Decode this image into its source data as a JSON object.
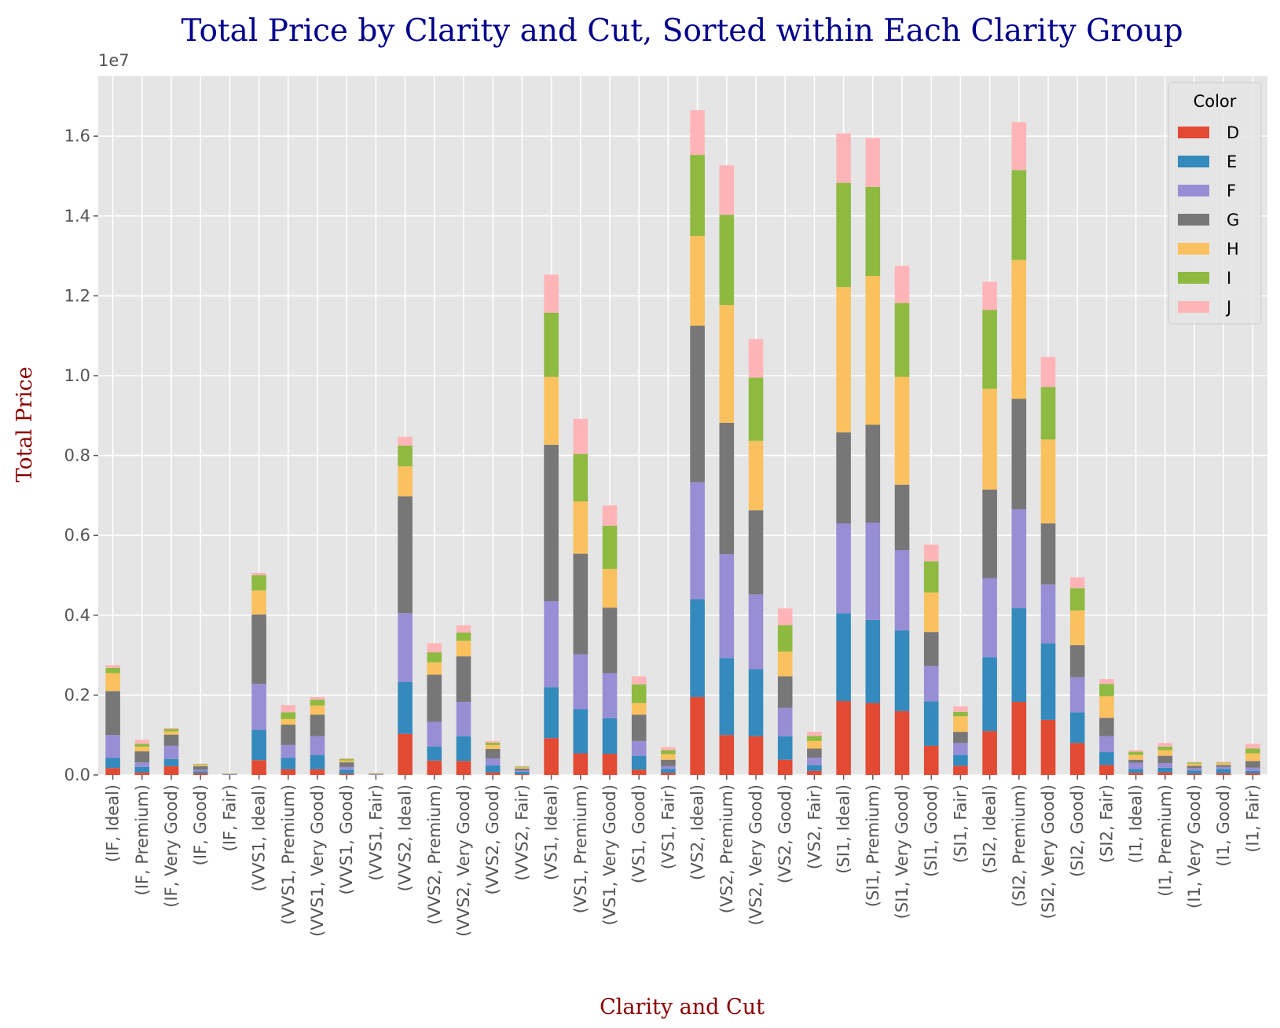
{
  "chart_data": {
    "type": "stacked_bar",
    "title": "Total Price by Clarity and Cut, Sorted within Each Clarity Group",
    "x_label": "Clarity and Cut",
    "y_label": "Total Price",
    "y_offset_label": "1e7",
    "legend_title": "Color",
    "legend_position": "upper right",
    "grid": true,
    "categories": [
      "(IF, Ideal)",
      "(IF, Premium)",
      "(IF, Very Good)",
      "(IF, Good)",
      "(IF, Fair)",
      "(VVS1, Ideal)",
      "(VVS1, Premium)",
      "(VVS1, Very Good)",
      "(VVS1, Good)",
      "(VVS1, Fair)",
      "(VVS2, Ideal)",
      "(VVS2, Premium)",
      "(VVS2, Very Good)",
      "(VVS2, Good)",
      "(VVS2, Fair)",
      "(VS1, Ideal)",
      "(VS1, Premium)",
      "(VS1, Very Good)",
      "(VS1, Good)",
      "(VS1, Fair)",
      "(VS2, Ideal)",
      "(VS2, Premium)",
      "(VS2, Very Good)",
      "(VS2, Good)",
      "(VS2, Fair)",
      "(SI1, Ideal)",
      "(SI1, Premium)",
      "(SI1, Very Good)",
      "(SI1, Good)",
      "(SI1, Fair)",
      "(SI2, Ideal)",
      "(SI2, Premium)",
      "(SI2, Very Good)",
      "(SI2, Good)",
      "(SI2, Fair)",
      "(I1, Ideal)",
      "(I1, Premium)",
      "(I1, Very Good)",
      "(I1, Good)",
      "(I1, Fair)"
    ],
    "series": [
      {
        "name": "D",
        "color": "#E24A33",
        "values": [
          0.017,
          0.006,
          0.022,
          0.004,
          0.0005,
          0.037,
          0.014,
          0.014,
          0.003,
          0.0006,
          0.103,
          0.036,
          0.035,
          0.006,
          0.002,
          0.092,
          0.054,
          0.053,
          0.013,
          0.005,
          0.195,
          0.1,
          0.097,
          0.038,
          0.01,
          0.185,
          0.18,
          0.16,
          0.073,
          0.023,
          0.11,
          0.183,
          0.138,
          0.08,
          0.025,
          0.005,
          0.006,
          0.003,
          0.004,
          0.004
        ]
      },
      {
        "name": "E",
        "color": "#348ABD",
        "values": [
          0.026,
          0.014,
          0.018,
          0.005,
          0.0005,
          0.076,
          0.029,
          0.036,
          0.01,
          0.0007,
          0.13,
          0.035,
          0.062,
          0.018,
          0.006,
          0.128,
          0.111,
          0.089,
          0.035,
          0.01,
          0.245,
          0.193,
          0.168,
          0.059,
          0.015,
          0.22,
          0.208,
          0.202,
          0.111,
          0.027,
          0.185,
          0.235,
          0.192,
          0.077,
          0.032,
          0.01,
          0.012,
          0.008,
          0.011,
          0.006
        ]
      },
      {
        "name": "F",
        "color": "#988ED5",
        "values": [
          0.057,
          0.011,
          0.033,
          0.004,
          0.0008,
          0.115,
          0.032,
          0.047,
          0.007,
          0.0005,
          0.172,
          0.062,
          0.086,
          0.017,
          0.003,
          0.215,
          0.137,
          0.113,
          0.037,
          0.007,
          0.293,
          0.26,
          0.187,
          0.071,
          0.018,
          0.225,
          0.244,
          0.201,
          0.089,
          0.03,
          0.198,
          0.247,
          0.147,
          0.088,
          0.04,
          0.015,
          0.011,
          0.006,
          0.005,
          0.008
        ]
      },
      {
        "name": "G",
        "color": "#777777",
        "values": [
          0.11,
          0.028,
          0.028,
          0.009,
          0.0008,
          0.174,
          0.051,
          0.054,
          0.012,
          0.0009,
          0.293,
          0.118,
          0.114,
          0.024,
          0.005,
          0.392,
          0.252,
          0.164,
          0.066,
          0.016,
          0.392,
          0.329,
          0.211,
          0.079,
          0.023,
          0.228,
          0.245,
          0.164,
          0.085,
          0.028,
          0.222,
          0.277,
          0.153,
          0.08,
          0.046,
          0.008,
          0.019,
          0.006,
          0.005,
          0.017
        ]
      },
      {
        "name": "H",
        "color": "#FBC15E",
        "values": [
          0.045,
          0.012,
          0.008,
          0.003,
          0.0006,
          0.06,
          0.014,
          0.023,
          0.004,
          0.0008,
          0.075,
          0.031,
          0.039,
          0.01,
          0.003,
          0.17,
          0.131,
          0.097,
          0.029,
          0.014,
          0.225,
          0.295,
          0.174,
          0.062,
          0.019,
          0.364,
          0.373,
          0.27,
          0.099,
          0.039,
          0.252,
          0.348,
          0.21,
          0.087,
          0.054,
          0.012,
          0.014,
          0.005,
          0.004,
          0.019
        ]
      },
      {
        "name": "I",
        "color": "#8EBA42",
        "values": [
          0.013,
          0.007,
          0.006,
          0.002,
          0.0005,
          0.038,
          0.017,
          0.014,
          0.004,
          0.0009,
          0.052,
          0.025,
          0.021,
          0.006,
          0.002,
          0.161,
          0.119,
          0.108,
          0.047,
          0.01,
          0.203,
          0.226,
          0.158,
          0.066,
          0.013,
          0.261,
          0.223,
          0.185,
          0.078,
          0.011,
          0.198,
          0.225,
          0.132,
          0.056,
          0.031,
          0.008,
          0.009,
          0.003,
          0.002,
          0.012
        ]
      },
      {
        "name": "J",
        "color": "#FFB5B8",
        "values": [
          0.007,
          0.01,
          0.003,
          0.001,
          0.0003,
          0.006,
          0.018,
          0.007,
          0.002,
          0.0006,
          0.022,
          0.023,
          0.018,
          0.004,
          0.001,
          0.095,
          0.088,
          0.051,
          0.02,
          0.008,
          0.112,
          0.124,
          0.097,
          0.042,
          0.01,
          0.124,
          0.122,
          0.093,
          0.042,
          0.014,
          0.07,
          0.12,
          0.075,
          0.027,
          0.012,
          0.004,
          0.009,
          0.002,
          0.002,
          0.012
        ]
      }
    ],
    "ylim": [
      0,
      1.75
    ],
    "yticks": [
      {
        "value": 0,
        "label": "0.0"
      },
      {
        "value": 0.2,
        "label": "0.2"
      },
      {
        "value": 0.4,
        "label": "0.4"
      },
      {
        "value": 0.6,
        "label": "0.6"
      },
      {
        "value": 0.8,
        "label": "0.8"
      },
      {
        "value": 1.0,
        "label": "1.0"
      },
      {
        "value": 1.2,
        "label": "1.2"
      },
      {
        "value": 1.4,
        "label": "1.4"
      },
      {
        "value": 1.6,
        "label": "1.6"
      }
    ]
  }
}
